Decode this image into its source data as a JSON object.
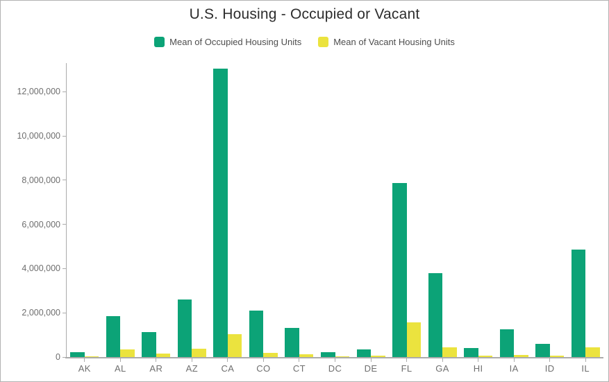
{
  "window": {
    "border_color": "#b2b2b2",
    "background": "#ffffff"
  },
  "colors": {
    "axis_line": "#ababab",
    "tick_label": "#6e6e6e",
    "title_text": "#2d2d2d",
    "legend_text": "#4d4d4d",
    "occupied_green": "#0ca377",
    "vacant_yellow": "#ebe33e"
  },
  "chart_data": {
    "type": "bar",
    "title": "U.S. Housing - Occupied or Vacant",
    "xlabel": "",
    "ylabel": "",
    "grid": false,
    "legend_position": "top",
    "categories": [
      "AK",
      "AL",
      "AR",
      "AZ",
      "CA",
      "CO",
      "CT",
      "DC",
      "DE",
      "FL",
      "GA",
      "HI",
      "IA",
      "ID",
      "IL"
    ],
    "series": [
      {
        "name": "Mean of Occupied Housing Units",
        "color": "#0ca377",
        "values": [
          230000,
          1860000,
          1120000,
          2600000,
          13040000,
          2110000,
          1330000,
          230000,
          350000,
          7880000,
          3800000,
          420000,
          1250000,
          600000,
          4850000
        ]
      },
      {
        "name": "Mean of Vacant Housing Units",
        "color": "#ebe33e",
        "values": [
          45000,
          355000,
          155000,
          365000,
          1050000,
          180000,
          115000,
          25000,
          65000,
          1580000,
          440000,
          60000,
          105000,
          60000,
          440000
        ]
      }
    ],
    "ylim": [
      0,
      13300000
    ],
    "yticks": [
      0,
      2000000,
      4000000,
      6000000,
      8000000,
      10000000,
      12000000
    ]
  }
}
